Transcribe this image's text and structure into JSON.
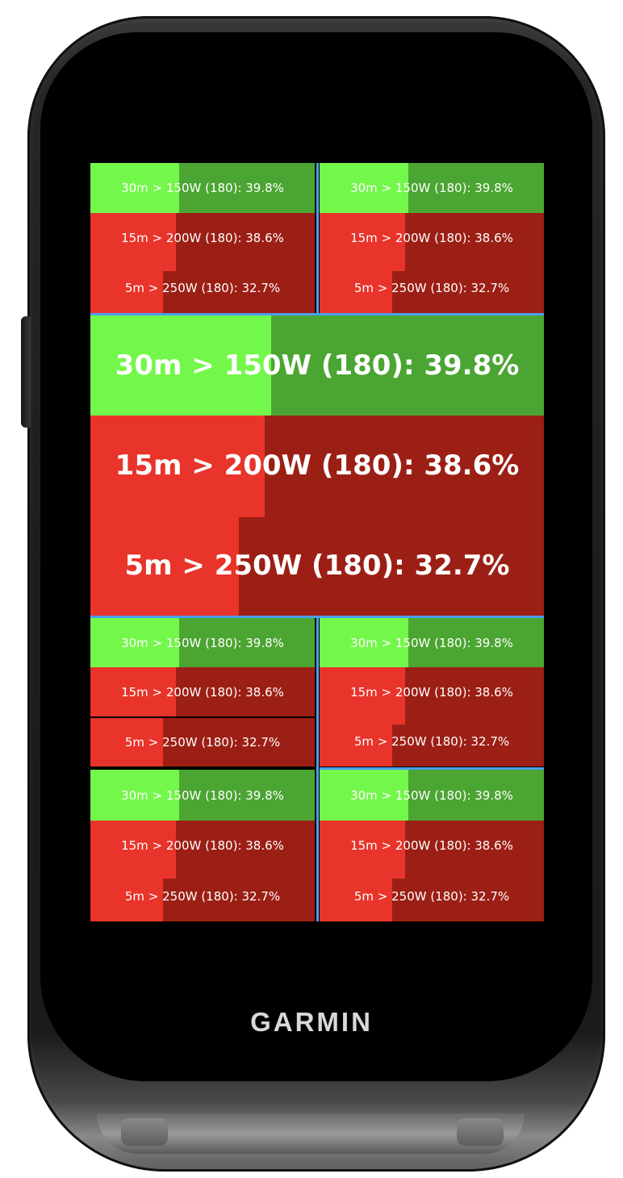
{
  "brand": {
    "logo_text": "GARMIN"
  },
  "metrics": {
    "row1": {
      "label": "30m > 150W (180): 39.8%",
      "percent": 39.8
    },
    "row2": {
      "label": "15m > 200W (180): 38.6%",
      "percent": 38.6
    },
    "row3": {
      "label": "5m > 250W (180): 32.7%",
      "percent": 32.7
    }
  },
  "colors": {
    "green_fill": "#74f74b",
    "green_bg": "#4ba532",
    "red_fill": "#e8342a",
    "red_bg": "#9c1f15",
    "divider": "#4a9ef0"
  }
}
